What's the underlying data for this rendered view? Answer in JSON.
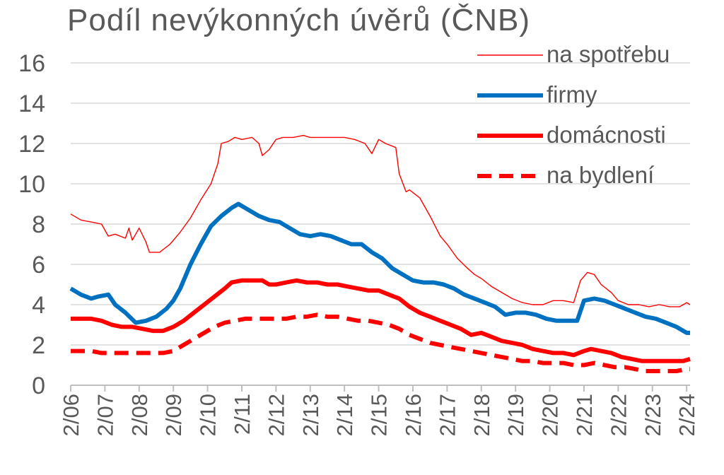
{
  "chart_data": {
    "type": "line",
    "title": "Podíl nevýkonných úvěrů (ČNB)",
    "xlabel": "",
    "ylabel": "",
    "ylim": [
      0,
      16
    ],
    "yticks": [
      0,
      2,
      4,
      6,
      8,
      10,
      12,
      14,
      16
    ],
    "xlim": [
      2006.0,
      2024.1
    ],
    "xtick_labels": [
      "2/06",
      "2/07",
      "2/08",
      "2/09",
      "2/10",
      "2/11",
      "2/12",
      "2/13",
      "2/14",
      "2/15",
      "2/16",
      "2/17",
      "2/18",
      "2/19",
      "2/20",
      "2/21",
      "2/22",
      "2/23",
      "2/24"
    ],
    "grid": "horizontal",
    "legend_position": "top-right",
    "series": [
      {
        "name": "na spotřebu",
        "color": "#ff0000",
        "style": "thin",
        "x": [
          2006.0,
          2006.3,
          2006.6,
          2006.9,
          2007.1,
          2007.3,
          2007.6,
          2007.7,
          2007.8,
          2008.0,
          2008.2,
          2008.3,
          2008.6,
          2008.9,
          2009.2,
          2009.5,
          2009.8,
          2010.1,
          2010.3,
          2010.4,
          2010.6,
          2010.8,
          2011.0,
          2011.3,
          2011.5,
          2011.6,
          2011.8,
          2012.0,
          2012.2,
          2012.5,
          2012.8,
          2013.0,
          2013.2,
          2013.5,
          2013.8,
          2014.0,
          2014.3,
          2014.6,
          2014.8,
          2015.0,
          2015.2,
          2015.5,
          2015.6,
          2015.8,
          2015.9,
          2016.2,
          2016.5,
          2016.8,
          2017.0,
          2017.3,
          2017.6,
          2017.8,
          2018.0,
          2018.3,
          2018.6,
          2018.9,
          2019.2,
          2019.5,
          2019.8,
          2020.1,
          2020.4,
          2020.7,
          2020.9,
          2021.1,
          2021.3,
          2021.5,
          2021.8,
          2022.0,
          2022.3,
          2022.6,
          2022.9,
          2023.2,
          2023.5,
          2023.8,
          2024.0,
          2024.1
        ],
        "values": [
          8.5,
          8.2,
          8.1,
          8.0,
          7.4,
          7.5,
          7.3,
          7.8,
          7.2,
          7.8,
          7.1,
          6.6,
          6.6,
          7.0,
          7.6,
          8.3,
          9.2,
          10.0,
          11.0,
          12.0,
          12.1,
          12.3,
          12.2,
          12.3,
          12.0,
          11.4,
          11.7,
          12.2,
          12.3,
          12.3,
          12.4,
          12.3,
          12.3,
          12.3,
          12.3,
          12.3,
          12.2,
          12.0,
          11.5,
          12.2,
          12.0,
          11.8,
          10.5,
          9.6,
          9.7,
          9.3,
          8.4,
          7.4,
          7.0,
          6.3,
          5.8,
          5.5,
          5.3,
          4.9,
          4.6,
          4.3,
          4.1,
          4.0,
          4.0,
          4.2,
          4.2,
          4.1,
          5.2,
          5.6,
          5.5,
          5.0,
          4.6,
          4.2,
          4.0,
          4.0,
          3.9,
          4.0,
          3.9,
          3.9,
          4.1,
          4.0
        ]
      },
      {
        "name": "firmy",
        "color": "#0070c0",
        "style": "thick",
        "x": [
          2006.0,
          2006.3,
          2006.6,
          2006.8,
          2007.1,
          2007.3,
          2007.6,
          2007.9,
          2008.2,
          2008.5,
          2008.8,
          2009.0,
          2009.2,
          2009.5,
          2009.8,
          2010.1,
          2010.4,
          2010.7,
          2010.9,
          2011.2,
          2011.5,
          2011.8,
          2012.1,
          2012.4,
          2012.7,
          2013.0,
          2013.3,
          2013.6,
          2013.9,
          2014.2,
          2014.5,
          2014.8,
          2015.1,
          2015.4,
          2015.7,
          2016.0,
          2016.3,
          2016.6,
          2016.9,
          2017.2,
          2017.5,
          2017.8,
          2018.1,
          2018.4,
          2018.7,
          2019.0,
          2019.3,
          2019.6,
          2019.9,
          2020.2,
          2020.5,
          2020.8,
          2021.0,
          2021.3,
          2021.6,
          2021.9,
          2022.2,
          2022.5,
          2022.8,
          2023.1,
          2023.4,
          2023.7,
          2024.0,
          2024.1
        ],
        "values": [
          4.8,
          4.5,
          4.3,
          4.4,
          4.5,
          4.0,
          3.6,
          3.1,
          3.2,
          3.4,
          3.8,
          4.2,
          4.8,
          6.0,
          7.0,
          7.9,
          8.4,
          8.8,
          9.0,
          8.7,
          8.4,
          8.2,
          8.1,
          7.8,
          7.5,
          7.4,
          7.5,
          7.4,
          7.2,
          7.0,
          7.0,
          6.6,
          6.3,
          5.8,
          5.5,
          5.2,
          5.1,
          5.1,
          5.0,
          4.8,
          4.5,
          4.3,
          4.1,
          3.9,
          3.5,
          3.6,
          3.6,
          3.5,
          3.3,
          3.2,
          3.2,
          3.2,
          4.2,
          4.3,
          4.2,
          4.0,
          3.8,
          3.6,
          3.4,
          3.3,
          3.1,
          2.9,
          2.6,
          2.6
        ]
      },
      {
        "name": "domácnosti",
        "color": "#ff0000",
        "style": "thick",
        "x": [
          2006.0,
          2006.3,
          2006.6,
          2006.9,
          2007.2,
          2007.5,
          2007.8,
          2008.1,
          2008.4,
          2008.7,
          2009.0,
          2009.3,
          2009.6,
          2009.9,
          2010.2,
          2010.5,
          2010.7,
          2011.0,
          2011.3,
          2011.6,
          2011.8,
          2012.0,
          2012.3,
          2012.6,
          2012.9,
          2013.2,
          2013.5,
          2013.8,
          2014.1,
          2014.4,
          2014.7,
          2015.0,
          2015.3,
          2015.6,
          2015.9,
          2016.2,
          2016.5,
          2016.8,
          2017.1,
          2017.4,
          2017.7,
          2018.0,
          2018.3,
          2018.6,
          2018.9,
          2019.2,
          2019.5,
          2019.8,
          2020.1,
          2020.4,
          2020.7,
          2021.0,
          2021.2,
          2021.5,
          2021.8,
          2022.1,
          2022.4,
          2022.7,
          2023.0,
          2023.3,
          2023.6,
          2023.9,
          2024.1
        ],
        "values": [
          3.3,
          3.3,
          3.3,
          3.2,
          3.0,
          2.9,
          2.9,
          2.8,
          2.7,
          2.7,
          2.9,
          3.2,
          3.6,
          4.0,
          4.4,
          4.8,
          5.1,
          5.2,
          5.2,
          5.2,
          5.0,
          5.0,
          5.1,
          5.2,
          5.1,
          5.1,
          5.0,
          5.0,
          4.9,
          4.8,
          4.7,
          4.7,
          4.5,
          4.3,
          3.9,
          3.6,
          3.4,
          3.2,
          3.0,
          2.8,
          2.5,
          2.6,
          2.4,
          2.2,
          2.1,
          2.0,
          1.8,
          1.7,
          1.6,
          1.6,
          1.5,
          1.7,
          1.8,
          1.7,
          1.6,
          1.4,
          1.3,
          1.2,
          1.2,
          1.2,
          1.2,
          1.2,
          1.3
        ]
      },
      {
        "name": "na bydlení",
        "color": "#ff0000",
        "style": "dashed",
        "x": [
          2006.0,
          2006.3,
          2006.6,
          2006.9,
          2007.2,
          2007.5,
          2007.8,
          2008.1,
          2008.4,
          2008.7,
          2009.0,
          2009.3,
          2009.6,
          2009.9,
          2010.2,
          2010.5,
          2010.8,
          2011.1,
          2011.4,
          2011.7,
          2012.0,
          2012.3,
          2012.6,
          2012.9,
          2013.2,
          2013.5,
          2013.8,
          2014.1,
          2014.4,
          2014.7,
          2015.0,
          2015.3,
          2015.6,
          2015.9,
          2016.2,
          2016.5,
          2016.8,
          2017.1,
          2017.4,
          2017.7,
          2018.0,
          2018.3,
          2018.6,
          2018.9,
          2019.2,
          2019.5,
          2019.8,
          2020.1,
          2020.4,
          2020.7,
          2021.0,
          2021.3,
          2021.6,
          2021.9,
          2022.2,
          2022.5,
          2022.8,
          2023.1,
          2023.4,
          2023.7,
          2024.0,
          2024.1
        ],
        "values": [
          1.7,
          1.7,
          1.7,
          1.6,
          1.6,
          1.6,
          1.6,
          1.6,
          1.6,
          1.6,
          1.7,
          2.0,
          2.3,
          2.6,
          2.9,
          3.1,
          3.2,
          3.3,
          3.3,
          3.3,
          3.3,
          3.3,
          3.4,
          3.4,
          3.5,
          3.4,
          3.4,
          3.3,
          3.2,
          3.2,
          3.1,
          3.0,
          2.8,
          2.5,
          2.3,
          2.1,
          2.0,
          1.9,
          1.8,
          1.7,
          1.6,
          1.5,
          1.4,
          1.3,
          1.2,
          1.2,
          1.1,
          1.1,
          1.1,
          1.0,
          1.0,
          1.1,
          1.0,
          0.9,
          0.9,
          0.8,
          0.7,
          0.7,
          0.7,
          0.7,
          0.8,
          0.8
        ]
      }
    ]
  }
}
